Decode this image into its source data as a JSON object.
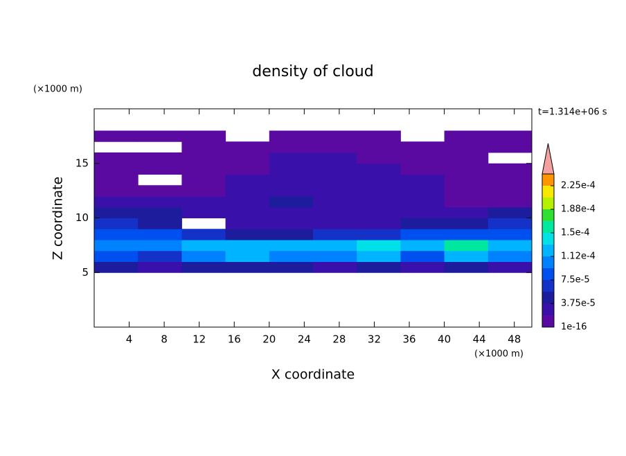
{
  "chart_data": {
    "type": "contour",
    "title": "density of cloud",
    "subtitle": "t=1.314e+06 s",
    "x_label": "X coordinate",
    "y_label": "Z coordinate",
    "x_unit": "(×1000 m)",
    "y_unit": "(×1000 m)",
    "xlim": [
      0,
      50
    ],
    "ylim": [
      0,
      20
    ],
    "xticks": [
      4,
      8,
      12,
      16,
      20,
      24,
      28,
      32,
      36,
      40,
      44,
      48
    ],
    "yticks": [
      5,
      10,
      15
    ],
    "x": [
      2.5,
      7.5,
      12.5,
      17.5,
      22.5,
      27.5,
      32.5,
      37.5,
      42.5,
      47.5
    ],
    "y": [
      4.5,
      5.5,
      6.5,
      7.5,
      8.5,
      9.5,
      10.5,
      11.5,
      12.5,
      13.5,
      14.5,
      15.5,
      16.5,
      17.5,
      18.5
    ],
    "z": [
      [
        null,
        null,
        null,
        null,
        null,
        null,
        null,
        null,
        null,
        null
      ],
      [
        4e-05,
        3e-05,
        4e-05,
        4e-05,
        4e-05,
        3e-05,
        4e-05,
        3e-05,
        4e-05,
        3e-05
      ],
      [
        9e-05,
        7e-05,
        0.00011,
        0.000115,
        0.00011,
        0.00011,
        0.00012,
        9e-05,
        0.00013,
        0.0001
      ],
      [
        0.00011,
        0.0001,
        0.00012,
        0.00013,
        0.00012,
        0.000125,
        0.000135,
        0.00013,
        0.000165,
        0.00012
      ],
      [
        9e-05,
        8e-05,
        6e-05,
        5e-05,
        5e-05,
        6e-05,
        7e-05,
        8e-05,
        9e-05,
        9e-05
      ],
      [
        6e-05,
        5e-05,
        null,
        2.5e-05,
        3e-05,
        3e-05,
        3e-05,
        4e-05,
        4e-05,
        6e-05
      ],
      [
        4e-05,
        4e-05,
        3e-05,
        2.5e-05,
        2.5e-05,
        2.5e-05,
        2.5e-05,
        3e-05,
        2.5e-05,
        4e-05
      ],
      [
        2.5e-05,
        2.5e-05,
        2.5e-05,
        2.5e-05,
        4e-05,
        2.5e-05,
        2.5e-05,
        2.5e-05,
        1e-05,
        1e-05
      ],
      [
        1e-05,
        1e-05,
        1e-05,
        2.5e-05,
        2.5e-05,
        2.5e-05,
        2.5e-05,
        2.5e-05,
        1e-05,
        1e-05
      ],
      [
        1e-05,
        null,
        1e-05,
        2.5e-05,
        2.5e-05,
        2.5e-05,
        2.5e-05,
        2.5e-05,
        1e-05,
        1e-05
      ],
      [
        1e-05,
        1e-05,
        1e-05,
        1e-05,
        2.5e-05,
        2.5e-05,
        2.5e-05,
        1e-05,
        1e-05,
        1e-05
      ],
      [
        1e-05,
        1e-05,
        1e-05,
        1e-05,
        2.5e-05,
        2.5e-05,
        1e-05,
        1e-05,
        1e-05,
        null
      ],
      [
        null,
        null,
        1e-05,
        1e-05,
        1e-05,
        1e-05,
        1e-05,
        1e-05,
        1e-05,
        1e-05
      ],
      [
        1e-05,
        1e-05,
        1e-05,
        null,
        1e-05,
        1e-05,
        1e-05,
        null,
        1e-05,
        1e-05
      ],
      [
        null,
        null,
        null,
        null,
        null,
        null,
        null,
        null,
        null,
        null
      ]
    ],
    "levels": [
      1e-16,
      1.875e-05,
      3.75e-05,
      5.625e-05,
      7.5e-05,
      9.375e-05,
      0.0001125,
      0.00013125,
      0.00015,
      0.00016875,
      0.0001875,
      0.00020625,
      0.000225
    ],
    "colors": [
      "#5a0aa0",
      "#3a10aa",
      "#1c1c9c",
      "#1432c8",
      "#0050f0",
      "#0082ff",
      "#00b4ff",
      "#00e0e6",
      "#00e8a0",
      "#30e030",
      "#b4f000",
      "#f8e800",
      "#ff9600",
      "#ff2a00"
    ],
    "extend_color": "#f4a0a0",
    "colorbar_ticks": [
      {
        "value": 1e-16,
        "label": "1e-16"
      },
      {
        "value": 3.75e-05,
        "label": "3.75e-5"
      },
      {
        "value": 7.5e-05,
        "label": "7.5e-5"
      },
      {
        "value": 0.0001125,
        "label": "1.12e-4"
      },
      {
        "value": 0.00015,
        "label": "1.5e-4"
      },
      {
        "value": 0.0001875,
        "label": "1.88e-4"
      },
      {
        "value": 0.000225,
        "label": "2.25e-4"
      }
    ]
  }
}
